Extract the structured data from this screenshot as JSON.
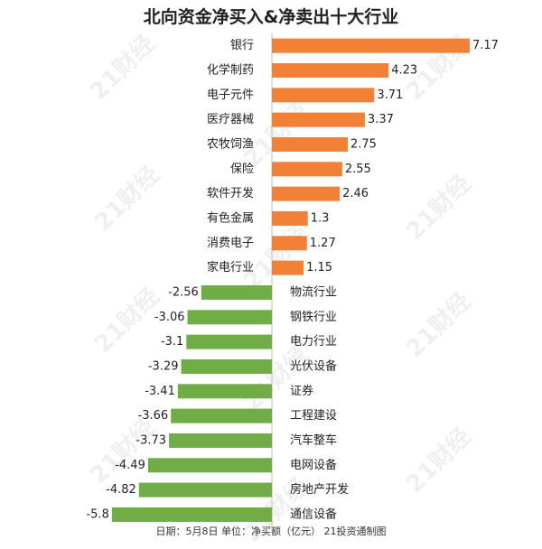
{
  "title": "北向资金净买入&净卖出十大行业",
  "footer": "日期：5月8日 单位：净买额（亿元） 21投资通制图",
  "watermark": "21财经",
  "colors": {
    "positive": "#F08136",
    "negative": "#70AD47"
  },
  "chart_data": {
    "type": "bar",
    "orientation": "horizontal",
    "title": "北向资金净买入&净卖出十大行业",
    "unit": "亿元",
    "categories": [
      "银行",
      "化学制药",
      "电子元件",
      "医疗器械",
      "农牧饲渔",
      "保险",
      "软件开发",
      "有色金属",
      "消费电子",
      "家电行业",
      "物流行业",
      "钢铁行业",
      "电力行业",
      "光伏设备",
      "证券",
      "工程建设",
      "汽车整车",
      "电网设备",
      "房地产开发",
      "通信设备"
    ],
    "values": [
      7.17,
      4.23,
      3.71,
      3.37,
      2.75,
      2.55,
      2.46,
      1.3,
      1.27,
      1.15,
      -2.56,
      -3.06,
      -3.1,
      -3.29,
      -3.41,
      -3.66,
      -3.73,
      -4.49,
      -4.82,
      -5.8
    ],
    "value_labels": [
      "7.17",
      "4.23",
      "3.71",
      "3.37",
      "2.75",
      "2.55",
      "2.46",
      "1.3",
      "1.27",
      "1.15",
      "-2.56",
      "-3.06",
      "-3.1",
      "-3.29",
      "-3.41",
      "-3.66",
      "-3.73",
      "-4.49",
      "-4.82",
      "-5.8"
    ],
    "xlim": [
      -5.8,
      7.17
    ],
    "grid": false,
    "legend": "none"
  }
}
